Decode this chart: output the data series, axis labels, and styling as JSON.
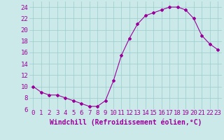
{
  "x": [
    0,
    1,
    2,
    3,
    4,
    5,
    6,
    7,
    8,
    9,
    10,
    11,
    12,
    13,
    14,
    15,
    16,
    17,
    18,
    19,
    20,
    21,
    22,
    23
  ],
  "y": [
    10,
    9,
    8.5,
    8.5,
    8,
    7.5,
    7,
    6.5,
    6.5,
    7.5,
    11,
    15.5,
    18.5,
    21,
    22.5,
    23,
    23.5,
    24,
    24,
    23.5,
    22,
    19,
    17.5,
    16.5
  ],
  "line_color": "#990099",
  "marker": "D",
  "marker_size": 2.0,
  "bg_color": "#cce9e9",
  "grid_color": "#99cccc",
  "xlabel": "Windchill (Refroidissement éolien,°C)",
  "xlabel_fontsize": 7,
  "tick_fontsize": 6.5,
  "ylim": [
    6,
    25
  ],
  "yticks": [
    6,
    8,
    10,
    12,
    14,
    16,
    18,
    20,
    22,
    24
  ],
  "xlim": [
    -0.5,
    23.5
  ],
  "xticks": [
    0,
    1,
    2,
    3,
    4,
    5,
    6,
    7,
    8,
    9,
    10,
    11,
    12,
    13,
    14,
    15,
    16,
    17,
    18,
    19,
    20,
    21,
    22,
    23
  ]
}
